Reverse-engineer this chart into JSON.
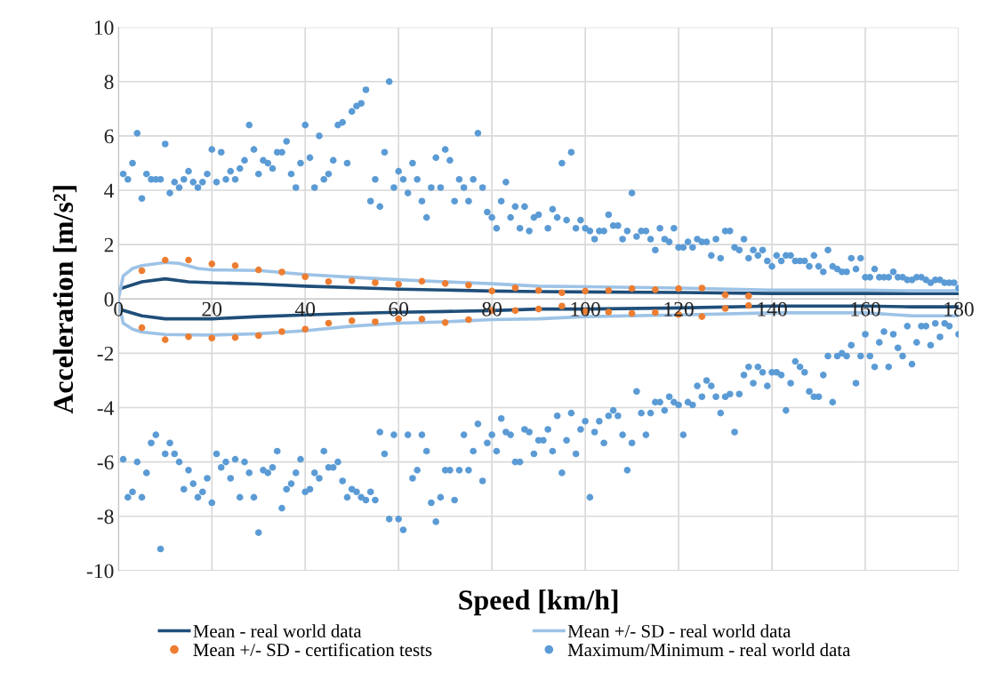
{
  "chart_data": {
    "type": "scatter",
    "xlabel": "Speed [km/h]",
    "ylabel": "Acceleration [m/s²]",
    "xlim": [
      0,
      180
    ],
    "xticks": [
      0,
      20,
      40,
      60,
      80,
      100,
      120,
      140,
      160,
      180
    ],
    "ylim": [
      -10,
      10
    ],
    "yticks": [
      -10,
      -8,
      -6,
      -4,
      -2,
      0,
      2,
      4,
      6,
      8,
      10
    ],
    "grid": true,
    "legend": "bottom",
    "marker": "circle",
    "series": [
      {
        "name": "Mean - real world data",
        "type": "line",
        "marker": "none",
        "line_style": "solid",
        "color": "#1f4e79",
        "x": [
          0,
          5,
          10,
          15,
          20,
          30,
          40,
          50,
          60,
          70,
          80,
          90,
          100,
          120,
          140,
          160,
          180
        ],
        "values": [
          0.36,
          0.63,
          0.74,
          0.63,
          0.6,
          0.55,
          0.47,
          0.42,
          0.36,
          0.33,
          0.29,
          0.27,
          0.26,
          0.24,
          0.2,
          0.2,
          0.2
        ]
      },
      {
        "type": "line",
        "marker": "none",
        "line_style": "solid",
        "color": "#1f4e79",
        "x": [
          0,
          5,
          10,
          20,
          30,
          40,
          50,
          60,
          70,
          80,
          90,
          100,
          120,
          140,
          160,
          170,
          180
        ],
        "values": [
          -0.37,
          -0.62,
          -0.73,
          -0.73,
          -0.65,
          -0.59,
          -0.53,
          -0.49,
          -0.46,
          -0.43,
          -0.37,
          -0.37,
          -0.33,
          -0.26,
          -0.26,
          -0.29,
          -0.29
        ]
      },
      {
        "name": "Mean +/- SD - real world data",
        "type": "line",
        "marker": "none",
        "line_style": "solid",
        "color": "#9dc3e6",
        "x": [
          0,
          1,
          3,
          5,
          10,
          13,
          17,
          20,
          30,
          40,
          50,
          60,
          70,
          80,
          90,
          100,
          120,
          140,
          160,
          170,
          180
        ],
        "values": [
          0.03,
          0.85,
          1.12,
          1.23,
          1.34,
          1.31,
          1.12,
          1.07,
          1.05,
          0.9,
          0.8,
          0.71,
          0.63,
          0.56,
          0.47,
          0.45,
          0.4,
          0.33,
          0.33,
          0.3,
          0.3
        ]
      },
      {
        "type": "line",
        "marker": "none",
        "line_style": "solid",
        "color": "#9dc3e6",
        "x": [
          0,
          1,
          3,
          5,
          10,
          20,
          30,
          40,
          50,
          60,
          70,
          80,
          90,
          100,
          120,
          140,
          160,
          170,
          180
        ],
        "values": [
          -0.1,
          -0.89,
          -1.11,
          -1.22,
          -1.31,
          -1.33,
          -1.28,
          -1.17,
          -1.0,
          -0.89,
          -0.84,
          -0.76,
          -0.73,
          -0.65,
          -0.59,
          -0.51,
          -0.51,
          -0.62,
          -0.62
        ]
      },
      {
        "name": "Mean +/- SD - certification tests",
        "color": "#ed7d31",
        "x": [
          5,
          10,
          15,
          20,
          25,
          30,
          35,
          40,
          45,
          50,
          55,
          60,
          65,
          70,
          75,
          80,
          85,
          90,
          95,
          100,
          105,
          110,
          115,
          120,
          125,
          130,
          135,
          5,
          10,
          15,
          20,
          25,
          30,
          35,
          40,
          45,
          50,
          55,
          60,
          65,
          70,
          75,
          80,
          85,
          90,
          95,
          100,
          105,
          110,
          115,
          120,
          125,
          130,
          135
        ],
        "values": [
          1.04,
          1.43,
          1.43,
          1.29,
          1.23,
          1.07,
          0.99,
          0.82,
          0.64,
          0.67,
          0.6,
          0.54,
          0.65,
          0.57,
          0.51,
          0.29,
          0.41,
          0.31,
          0.23,
          0.29,
          0.31,
          0.38,
          0.34,
          0.38,
          0.4,
          0.15,
          0.11,
          -1.06,
          -1.5,
          -1.39,
          -1.44,
          -1.42,
          -1.35,
          -1.2,
          -1.11,
          -0.89,
          -0.8,
          -0.84,
          -0.73,
          -0.74,
          -0.87,
          -0.76,
          -0.43,
          -0.43,
          -0.37,
          -0.26,
          -0.46,
          -0.48,
          -0.53,
          -0.5,
          -0.57,
          -0.65,
          -0.35,
          -0.24
        ]
      },
      {
        "name": "Maximum/Minimum - real world data",
        "color": "#5b9bd5",
        "x": [
          1,
          2,
          3,
          4,
          5,
          6,
          7,
          8,
          9,
          10,
          11,
          12,
          13,
          14,
          15,
          16,
          17,
          18,
          19,
          20,
          21,
          22,
          23,
          24,
          25,
          26,
          27,
          28,
          29,
          30,
          31,
          32,
          33,
          34,
          35,
          36,
          37,
          38,
          39,
          40,
          41,
          42,
          43,
          44,
          45,
          46,
          47,
          48,
          49,
          50,
          51,
          52,
          53,
          54,
          55,
          56,
          57,
          58,
          59,
          60,
          61,
          62,
          63,
          64,
          65,
          66,
          67,
          68,
          69,
          70,
          71,
          72,
          73,
          74,
          75,
          76,
          77,
          78,
          79,
          80,
          81,
          82,
          83,
          84,
          85,
          86,
          87,
          88,
          89,
          90,
          92,
          93,
          94,
          95,
          96,
          97,
          98,
          99,
          100,
          101,
          102,
          103,
          104,
          105,
          106,
          107,
          108,
          109,
          110,
          111,
          112,
          113,
          114,
          115,
          116,
          117,
          118,
          119,
          120,
          121,
          122,
          123,
          124,
          125,
          126,
          127,
          128,
          129,
          130,
          131,
          132,
          133,
          134,
          135,
          136,
          137,
          138,
          139,
          140,
          141,
          142,
          143,
          144,
          145,
          146,
          147,
          148,
          149,
          150,
          151,
          152,
          153,
          154,
          155,
          156,
          157,
          158,
          159,
          160,
          161,
          162,
          163,
          164,
          165,
          166,
          167,
          168,
          169,
          170,
          171,
          172,
          173,
          174,
          175,
          176,
          177,
          178,
          179,
          180
        ],
        "values": [
          4.6,
          4.4,
          5.0,
          6.1,
          3.7,
          4.6,
          4.4,
          4.4,
          4.4,
          5.7,
          3.9,
          4.3,
          4.1,
          4.4,
          4.7,
          4.3,
          4.1,
          4.3,
          4.6,
          5.5,
          4.3,
          5.4,
          4.4,
          4.7,
          4.4,
          4.8,
          5.1,
          6.4,
          5.5,
          4.6,
          5.1,
          5.0,
          4.8,
          5.4,
          5.4,
          5.8,
          4.6,
          4.1,
          5.0,
          6.4,
          5.2,
          4.1,
          6.0,
          4.4,
          4.6,
          5.1,
          6.4,
          6.5,
          5.0,
          6.9,
          7.1,
          7.2,
          7.7,
          3.6,
          4.4,
          3.4,
          5.4,
          8.0,
          4.1,
          4.7,
          4.4,
          3.9,
          5.0,
          4.4,
          3.6,
          3.0,
          4.1,
          5.2,
          4.1,
          5.5,
          5.1,
          3.6,
          4.4,
          4.1,
          3.6,
          4.4,
          6.1,
          4.1,
          3.2,
          3.0,
          2.6,
          3.6,
          4.3,
          3.0,
          3.4,
          2.6,
          3.4,
          2.5,
          3.0,
          3.1,
          2.6,
          3.3,
          3.0,
          5.0,
          2.9,
          5.4,
          2.6,
          2.9,
          2.6,
          2.5,
          2.2,
          2.5,
          2.5,
          3.1,
          2.7,
          2.7,
          2.2,
          2.5,
          3.9,
          2.3,
          2.5,
          2.5,
          2.2,
          1.8,
          2.6,
          2.2,
          2.1,
          2.6,
          1.9,
          1.9,
          2.1,
          1.9,
          2.2,
          2.1,
          2.1,
          1.6,
          2.2,
          1.5,
          2.5,
          2.5,
          1.9,
          1.8,
          2.2,
          1.5,
          1.8,
          1.6,
          1.8,
          1.4,
          1.2,
          1.6,
          1.4,
          1.6,
          1.6,
          1.4,
          1.4,
          1.4,
          1.2,
          1.6,
          1.2,
          1.0,
          1.8,
          1.2,
          1.1,
          1.0,
          1.0,
          1.5,
          1.1,
          1.5,
          0.8,
          0.8,
          1.1,
          0.8,
          0.8,
          0.8,
          1.0,
          0.8,
          0.8,
          0.7,
          0.7,
          0.8,
          0.8,
          0.7,
          0.6,
          0.7,
          0.7,
          0.6,
          0.6,
          0.6,
          0.4
        ]
      },
      {
        "color": "#5b9bd5",
        "x": [
          1,
          2,
          3,
          4,
          5,
          6,
          7,
          8,
          9,
          10,
          11,
          12,
          13,
          14,
          15,
          16,
          17,
          18,
          19,
          20,
          21,
          22,
          23,
          24,
          25,
          26,
          27,
          28,
          29,
          30,
          31,
          32,
          33,
          34,
          35,
          36,
          37,
          38,
          39,
          40,
          41,
          42,
          43,
          44,
          45,
          46,
          47,
          48,
          49,
          50,
          51,
          52,
          53,
          54,
          55,
          56,
          57,
          58,
          59,
          60,
          61,
          62,
          63,
          64,
          65,
          66,
          67,
          68,
          69,
          70,
          71,
          72,
          73,
          74,
          75,
          76,
          77,
          78,
          79,
          80,
          81,
          82,
          83,
          84,
          85,
          86,
          87,
          88,
          89,
          90,
          91,
          92,
          93,
          94,
          95,
          96,
          97,
          98,
          99,
          100,
          101,
          102,
          103,
          104,
          105,
          106,
          107,
          108,
          109,
          110,
          111,
          112,
          113,
          114,
          115,
          116,
          117,
          118,
          119,
          120,
          121,
          122,
          123,
          124,
          125,
          126,
          127,
          128,
          129,
          130,
          131,
          132,
          133,
          134,
          135,
          136,
          137,
          138,
          139,
          140,
          141,
          142,
          143,
          144,
          145,
          146,
          147,
          148,
          149,
          150,
          151,
          152,
          153,
          154,
          155,
          156,
          157,
          158,
          159,
          160,
          161,
          162,
          163,
          164,
          165,
          166,
          167,
          168,
          169,
          170,
          171,
          172,
          173,
          174,
          175,
          176,
          177,
          178,
          180
        ],
        "values": [
          -5.9,
          -7.3,
          -7.1,
          -6.0,
          -7.3,
          -6.4,
          -5.3,
          -5.0,
          -9.2,
          -5.7,
          -5.3,
          -5.7,
          -6.0,
          -7.0,
          -6.3,
          -6.8,
          -7.3,
          -7.1,
          -6.6,
          -7.5,
          -5.7,
          -6.2,
          -6.0,
          -6.6,
          -5.9,
          -7.3,
          -6.0,
          -6.4,
          -7.3,
          -8.6,
          -6.3,
          -6.4,
          -6.2,
          -5.6,
          -7.7,
          -7.0,
          -6.8,
          -6.4,
          -5.9,
          -7.1,
          -7.0,
          -6.4,
          -6.6,
          -5.6,
          -6.2,
          -6.2,
          -6.0,
          -6.7,
          -7.3,
          -7.0,
          -7.1,
          -7.3,
          -7.4,
          -7.1,
          -7.4,
          -4.9,
          -5.7,
          -8.1,
          -5.0,
          -8.1,
          -8.5,
          -5.0,
          -6.6,
          -6.3,
          -5.0,
          -5.6,
          -7.5,
          -8.2,
          -7.3,
          -6.3,
          -6.3,
          -7.4,
          -6.3,
          -5.0,
          -6.3,
          -5.6,
          -4.6,
          -6.7,
          -5.3,
          -5.0,
          -5.6,
          -4.4,
          -4.9,
          -5.0,
          -6.0,
          -6.0,
          -4.8,
          -4.9,
          -5.7,
          -5.2,
          -5.2,
          -4.8,
          -5.6,
          -4.3,
          -6.4,
          -5.2,
          -4.2,
          -5.7,
          -4.8,
          -4.5,
          -7.3,
          -4.9,
          -4.5,
          -5.3,
          -4.3,
          -4.1,
          -4.3,
          -5.0,
          -6.3,
          -5.3,
          -3.4,
          -4.2,
          -5.0,
          -4.2,
          -3.8,
          -3.8,
          -4.1,
          -3.6,
          -3.8,
          -3.9,
          -5.0,
          -3.8,
          -3.9,
          -3.2,
          -3.6,
          -3.0,
          -3.2,
          -3.6,
          -4.2,
          -3.6,
          -3.5,
          -4.9,
          -3.5,
          -2.8,
          -2.5,
          -3.1,
          -2.5,
          -2.7,
          -3.2,
          -2.7,
          -2.7,
          -2.8,
          -4.1,
          -3.1,
          -2.3,
          -2.5,
          -2.7,
          -3.4,
          -3.6,
          -3.6,
          -2.8,
          -2.1,
          -3.8,
          -2.1,
          -2.0,
          -2.1,
          -1.7,
          -3.1,
          -2.1,
          -1.3,
          -2.1,
          -2.5,
          -1.6,
          -1.2,
          -2.5,
          -1.3,
          -1.8,
          -2.1,
          -1.0,
          -2.4,
          -1.6,
          -1.0,
          -1.0,
          -1.7,
          -0.9,
          -1.4,
          -0.9,
          -1.0,
          -1.3
        ]
      }
    ]
  }
}
